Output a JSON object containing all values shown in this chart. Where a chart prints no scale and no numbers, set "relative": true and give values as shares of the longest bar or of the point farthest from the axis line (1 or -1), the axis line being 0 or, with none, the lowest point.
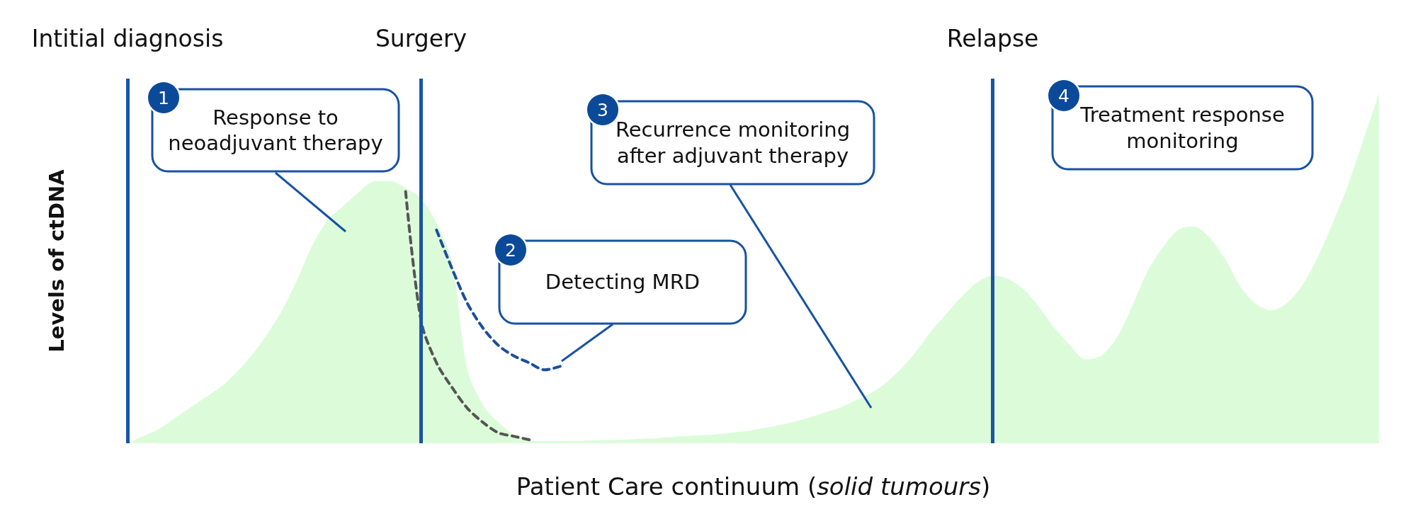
{
  "chart_data": {
    "type": "area",
    "xlabel": "Patient Care continuum (solid tumours)",
    "ylabel": "Levels of ctDNA",
    "categories": [
      "Intitial diagnosis",
      null,
      null,
      null,
      null,
      null,
      null,
      null,
      null,
      null,
      null,
      null,
      null,
      null,
      null,
      null,
      null,
      null,
      null,
      "Surgery",
      null,
      null,
      null,
      null,
      null,
      null,
      null,
      null,
      null,
      null,
      null,
      null,
      null,
      null,
      null,
      null,
      null,
      null,
      null,
      null,
      null,
      null,
      null,
      null,
      null,
      null,
      null,
      null,
      null,
      null,
      null,
      null,
      null,
      null,
      null,
      null,
      "Relapse",
      null,
      null,
      null,
      null,
      null,
      null,
      null,
      null,
      null,
      null,
      null,
      null,
      null,
      null,
      null,
      null,
      null,
      null,
      null,
      null,
      null,
      null,
      null,
      null,
      null
    ],
    "relative": true,
    "tick_labels": "x",
    "marker": "none",
    "series": [
      {
        "color": "#dcfcd9",
        "values": [
          0,
          0.02,
          0.04,
          0.07,
          0.1,
          0.13,
          0.16,
          0.2,
          0.25,
          0.31,
          0.38,
          0.47,
          0.57,
          0.64,
          0.68,
          0.72,
          0.75,
          0.75,
          0.73,
          0.7,
          0.63,
          0.52,
          0.21,
          0.11,
          0.06,
          0.025,
          0.008,
          0.006,
          0.006,
          0.007,
          0.008,
          0.009,
          0.01,
          0.012,
          0.014,
          0.017,
          0.02,
          0.023,
          0.025,
          0.03,
          0.035,
          0.042,
          0.05,
          0.06,
          0.072,
          0.086,
          0.1,
          0.12,
          0.14,
          0.17,
          0.21,
          0.26,
          0.32,
          0.37,
          0.42,
          0.46,
          0.48,
          0.47,
          0.44,
          0.39,
          0.33,
          0.28,
          0.24,
          0.25,
          0.3,
          0.39,
          0.49,
          0.56,
          0.61,
          0.62,
          0.59,
          0.53,
          0.45,
          0.4,
          0.38,
          0.4,
          0.45,
          0.53,
          0.63,
          0.74,
          0.87,
          1
        ]
      },
      {
        "type": "line",
        "color": "#555555",
        "line_style": "dashed",
        "values": [
          null,
          null,
          null,
          null,
          null,
          null,
          null,
          null,
          null,
          null,
          null,
          null,
          null,
          null,
          null,
          null,
          null,
          null,
          0.72,
          0.35,
          0.23,
          0.16,
          0.1,
          0.06,
          0.03,
          0.02,
          0.01,
          null,
          null,
          null,
          null,
          null,
          null,
          null,
          null,
          null,
          null,
          null,
          null,
          null,
          null,
          null,
          null,
          null,
          null,
          null,
          null,
          null,
          null,
          null,
          null,
          null,
          null,
          null,
          null,
          null,
          null,
          null,
          null,
          null,
          null,
          null,
          null,
          null,
          null,
          null,
          null,
          null,
          null,
          null,
          null,
          null,
          null,
          null,
          null,
          null,
          null,
          null,
          null,
          null,
          null,
          null
        ]
      },
      {
        "type": "line",
        "color": "#1a4f9c",
        "line_style": "dashed",
        "values": [
          null,
          null,
          null,
          null,
          null,
          null,
          null,
          null,
          null,
          null,
          null,
          null,
          null,
          null,
          null,
          null,
          null,
          null,
          null,
          null,
          0.61,
          0.5,
          0.4,
          0.33,
          0.28,
          0.25,
          0.23,
          0.21,
          0.22,
          null,
          null,
          null,
          null,
          null,
          null,
          null,
          null,
          null,
          null,
          null,
          null,
          null,
          null,
          null,
          null,
          null,
          null,
          null,
          null,
          null,
          null,
          null,
          null,
          null,
          null,
          null,
          null,
          null,
          null,
          null,
          null,
          null,
          null,
          null,
          null,
          null,
          null,
          null,
          null,
          null,
          null,
          null,
          null,
          null,
          null,
          null,
          null,
          null,
          null,
          null,
          null,
          null
        ]
      }
    ],
    "ref_lines": [
      {
        "axis": "x",
        "value": "Intitial diagnosis",
        "color": "#1a55a6"
      },
      {
        "axis": "x",
        "value": "Surgery",
        "color": "#1a55a6"
      },
      {
        "axis": "x",
        "value": "Relapse",
        "color": "#1a55a6"
      }
    ],
    "annotations": [
      "1",
      "Response to neoadjuvant therapy",
      "2",
      "Detecting MRD",
      "3",
      "Recurrence monitoring after adjuvant therapy",
      "4",
      "Treatment response monitoring"
    ]
  }
}
